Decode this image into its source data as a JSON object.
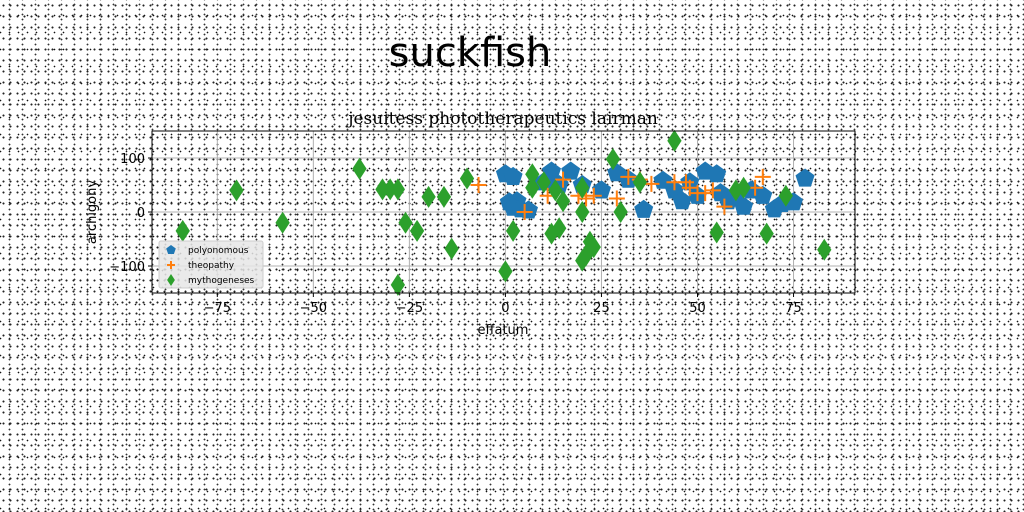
{
  "page": {
    "title": "suckfish"
  },
  "chart_data": {
    "type": "scatter",
    "title": "jesuitess phototherapeutics lairman",
    "xlabel": "effatum",
    "ylabel": "archigony",
    "xlim": [
      -92,
      91
    ],
    "ylim": [
      -150,
      150
    ],
    "x_ticks": [
      -75,
      -50,
      -25,
      0,
      25,
      50,
      75
    ],
    "x_tick_labels": [
      "−75",
      "−50",
      "−25",
      "0",
      "25",
      "50",
      "75"
    ],
    "y_ticks": [
      -100,
      0,
      100
    ],
    "y_tick_labels": [
      "−100",
      "0",
      "100"
    ],
    "grid": true,
    "legend_position": "lower-left",
    "series": [
      {
        "name": "polyonomous",
        "color": "#1f77b4",
        "marker": "pentagon",
        "points": [
          [
            0,
            70
          ],
          [
            2,
            65
          ],
          [
            3,
            20
          ],
          [
            1,
            18
          ],
          [
            2,
            8
          ],
          [
            4,
            5
          ],
          [
            6,
            3
          ],
          [
            10,
            55
          ],
          [
            12,
            75
          ],
          [
            14,
            50
          ],
          [
            17,
            75
          ],
          [
            20,
            50
          ],
          [
            25,
            40
          ],
          [
            29,
            72
          ],
          [
            32,
            60
          ],
          [
            36,
            4
          ],
          [
            41,
            58
          ],
          [
            44,
            40
          ],
          [
            46,
            20
          ],
          [
            48,
            55
          ],
          [
            50,
            30
          ],
          [
            52,
            75
          ],
          [
            55,
            70
          ],
          [
            56,
            35
          ],
          [
            58,
            20
          ],
          [
            60,
            30
          ],
          [
            62,
            10
          ],
          [
            70,
            5
          ],
          [
            72,
            15
          ],
          [
            75,
            18
          ],
          [
            78,
            62
          ],
          [
            67,
            30
          ],
          [
            64,
            40
          ]
        ]
      },
      {
        "name": "theopathy",
        "color": "#ff7f0e",
        "marker": "plus",
        "points": [
          [
            -7,
            50
          ],
          [
            5,
            0
          ],
          [
            11,
            30
          ],
          [
            15,
            60
          ],
          [
            19,
            30
          ],
          [
            21,
            25
          ],
          [
            23,
            30
          ],
          [
            29,
            25
          ],
          [
            32,
            65
          ],
          [
            35,
            60
          ],
          [
            38,
            52
          ],
          [
            44,
            55
          ],
          [
            47,
            55
          ],
          [
            48,
            45
          ],
          [
            50,
            35
          ],
          [
            52,
            35
          ],
          [
            54,
            40
          ],
          [
            57,
            10
          ],
          [
            65,
            45
          ],
          [
            67,
            65
          ]
        ]
      },
      {
        "name": "mythogeneses",
        "color": "#2ca02c",
        "marker": "diamond",
        "points": [
          [
            -84,
            -35
          ],
          [
            -70,
            40
          ],
          [
            -58,
            -20
          ],
          [
            -38,
            80
          ],
          [
            -32,
            42
          ],
          [
            -30,
            42
          ],
          [
            -28,
            42
          ],
          [
            -28,
            -135
          ],
          [
            -26,
            -20
          ],
          [
            -23,
            -35
          ],
          [
            -20,
            28
          ],
          [
            -16,
            28
          ],
          [
            -14,
            -68
          ],
          [
            -10,
            62
          ],
          [
            0,
            -110
          ],
          [
            2,
            -35
          ],
          [
            7,
            70
          ],
          [
            7,
            45
          ],
          [
            10,
            55
          ],
          [
            12,
            -40
          ],
          [
            13,
            40
          ],
          [
            14,
            -30
          ],
          [
            15,
            20
          ],
          [
            20,
            -90
          ],
          [
            21,
            -80
          ],
          [
            22,
            -55
          ],
          [
            23,
            -65
          ],
          [
            20,
            45
          ],
          [
            20,
            0
          ],
          [
            28,
            98
          ],
          [
            30,
            0
          ],
          [
            35,
            55
          ],
          [
            44,
            132
          ],
          [
            55,
            -38
          ],
          [
            60,
            40
          ],
          [
            62,
            45
          ],
          [
            68,
            -40
          ],
          [
            73,
            30
          ],
          [
            83,
            -70
          ]
        ]
      }
    ]
  }
}
